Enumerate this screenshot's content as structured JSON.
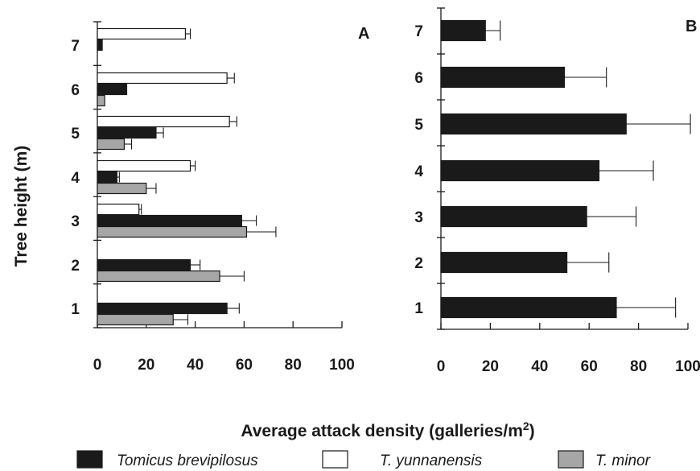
{
  "chart_data": [
    {
      "type": "bar",
      "orientation": "horizontal",
      "panel": "A",
      "categories": [
        "1",
        "2",
        "3",
        "4",
        "5",
        "6",
        "7"
      ],
      "series": [
        {
          "name": "Tomicus brevipilosus",
          "color": "#1a1a1a",
          "values": [
            53,
            38,
            59,
            8,
            24,
            12,
            2
          ],
          "errors": [
            5,
            4,
            6,
            1,
            3,
            0,
            0
          ]
        },
        {
          "name": "T. yunnanensis",
          "color": "#ffffff",
          "values": [
            null,
            null,
            17,
            38,
            54,
            53,
            36
          ],
          "errors": [
            null,
            null,
            1,
            2,
            3,
            3,
            2
          ]
        },
        {
          "name": "T. minor",
          "color": "#a6a6a6",
          "values": [
            31,
            50,
            61,
            20,
            11,
            3,
            null
          ],
          "errors": [
            6,
            10,
            12,
            4,
            3,
            0,
            null
          ]
        }
      ],
      "xlim": [
        0,
        100
      ],
      "xticks": [
        "0",
        "20",
        "40",
        "60",
        "80",
        "100"
      ],
      "ylabel": "Tree height (m)"
    },
    {
      "type": "bar",
      "orientation": "horizontal",
      "panel": "B",
      "categories": [
        "1",
        "2",
        "3",
        "4",
        "5",
        "6",
        "7"
      ],
      "series": [
        {
          "name": "Tomicus brevipilosus",
          "color": "#1a1a1a",
          "values": [
            71,
            51,
            59,
            64,
            75,
            50,
            18
          ],
          "errors": [
            24,
            17,
            20,
            22,
            26,
            17,
            6
          ]
        }
      ],
      "xlim": [
        0,
        100
      ],
      "xticks": [
        "0",
        "20",
        "40",
        "60",
        "80",
        "100"
      ]
    }
  ],
  "xlabel_main": "Average attack density (galleries/m",
  "xlabel_superscript": "2",
  "xlabel_close": ")",
  "legend": [
    {
      "label": "Tomicus brevipilosus",
      "color": "#1a1a1a"
    },
    {
      "label": "T. yunnanensis",
      "color": "#ffffff"
    },
    {
      "label": "T. minor",
      "color": "#a6a6a6"
    }
  ]
}
